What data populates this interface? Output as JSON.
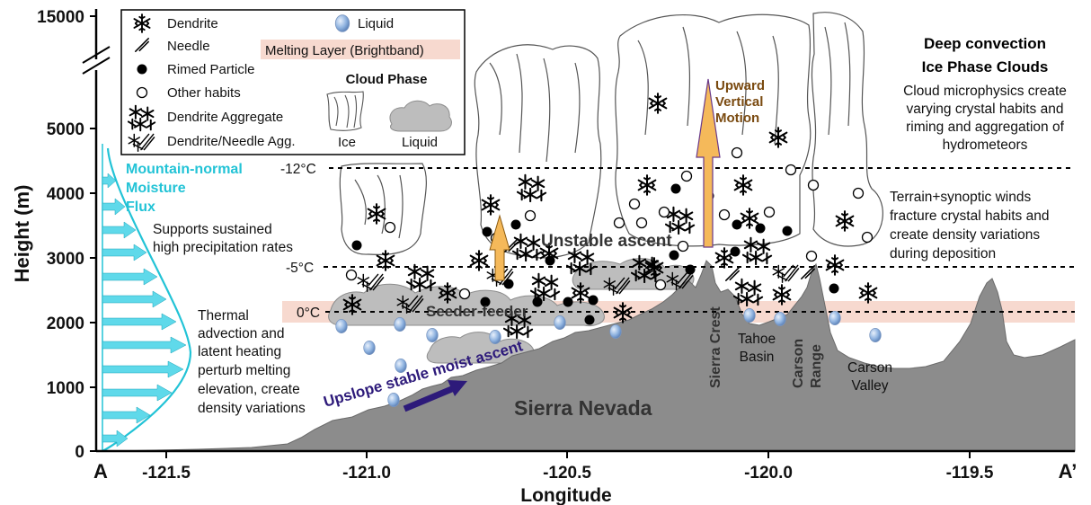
{
  "axes": {
    "y_title": "Height (m)",
    "x_title": "Longitude",
    "y_ticks": [
      "0",
      "1000",
      "2000",
      "3000",
      "4000",
      "5000",
      "15000"
    ],
    "x_ticks": [
      "-121.5",
      "-121.0",
      "-120.5",
      "-120.0",
      "-119.5"
    ],
    "start_label": "A",
    "end_label": "A’"
  },
  "legend": {
    "dendrite": "Dendrite",
    "needle": "Needle",
    "rimed": "Rimed Particle",
    "other": "Other habits",
    "aggregate": "Dendrite Aggregate",
    "needle_agg": "Dendrite/Needle Agg.",
    "liquid": "Liquid",
    "melting_layer": "Melting Layer (Brightband)",
    "cloud_phase_title": "Cloud Phase",
    "ice": "Ice",
    "liquid_cloud": "Liquid"
  },
  "temperatures": {
    "minus12": "-12°C",
    "minus5": "-5°C",
    "zero": "0°C"
  },
  "moisture_flux": [
    "Mountain-normal",
    "Moisture",
    "Flux"
  ],
  "annotations": {
    "supports": [
      "Supports sustained",
      "high precipitation rates"
    ],
    "thermal": [
      "Thermal",
      "advection and",
      "latent heating",
      "perturb melting",
      "elevation, create",
      "density variations"
    ],
    "unstable": "Unstable ascent",
    "seeder": "Seeder-feeder",
    "upslope": "Upslope stable moist ascent",
    "upward": [
      "Upward",
      "Vertical",
      "Motion"
    ],
    "deep_title": [
      "Deep convection",
      "Ice Phase Clouds"
    ],
    "deep_desc": [
      "Cloud microphysics create",
      "varying crystal habits and",
      "riming and aggregation of",
      "hydrometeors"
    ],
    "terrain": [
      "Terrain+synoptic winds",
      "fracture crystal habits and",
      "create density variations",
      "during deposition"
    ]
  },
  "terrain_labels": {
    "sierra_nevada": "Sierra Nevada",
    "sierra_crest": "Sierra Crest",
    "tahoe": [
      "Tahoe",
      "Basin"
    ],
    "carson_range": [
      "Carson",
      "Range"
    ],
    "carson_valley": [
      "Carson",
      "Valley"
    ]
  },
  "colors": {
    "terrain": "#8c8c8c",
    "melting_layer": "#f7d9cf",
    "moisture_arrow": "#5fd9ea",
    "arrow_orange": "#f5b95a",
    "upslope_arrow": "#2d1a7a",
    "moisture_text": "#22c3d6",
    "liquid_cloud": "#bdbdbd"
  }
}
